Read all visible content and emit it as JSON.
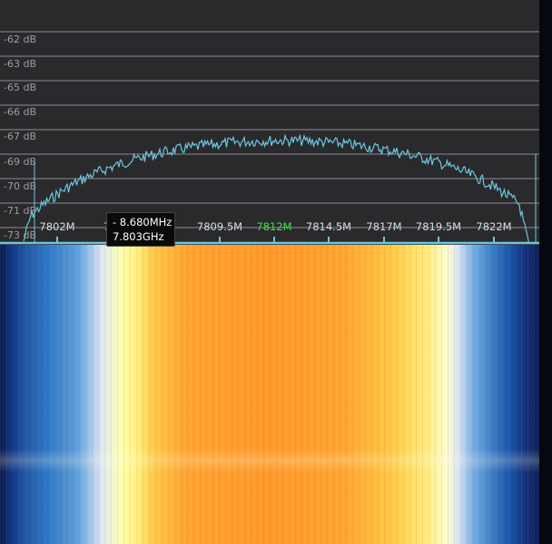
{
  "spectrum": {
    "db_labels": [
      "-62 dB",
      "-63 dB",
      "-65 dB",
      "-66 dB",
      "-67 dB",
      "-69 dB",
      "-70 dB",
      "-71 dB",
      "-73 dB"
    ],
    "freq_labels": [
      "7802M",
      "780",
      "7809.5M",
      "7812M",
      "7814.5M",
      "7817M",
      "7819.5M",
      "7822M"
    ],
    "center_freq_label": "7812M",
    "trace_color": "#6cc6de",
    "grid_color": "#8f8f93",
    "center_label_color": "#3fe04a"
  },
  "tooltip": {
    "offset": "- 8.680MHz",
    "frequency": "7.803GHz"
  },
  "waterfall": {
    "colormap": [
      "#0b1a4a",
      "#2f7bc7",
      "#ffffb5",
      "#ffa432",
      "#ff9a2c",
      "#ffec7e",
      "#3c83cd",
      "#071233"
    ]
  }
}
